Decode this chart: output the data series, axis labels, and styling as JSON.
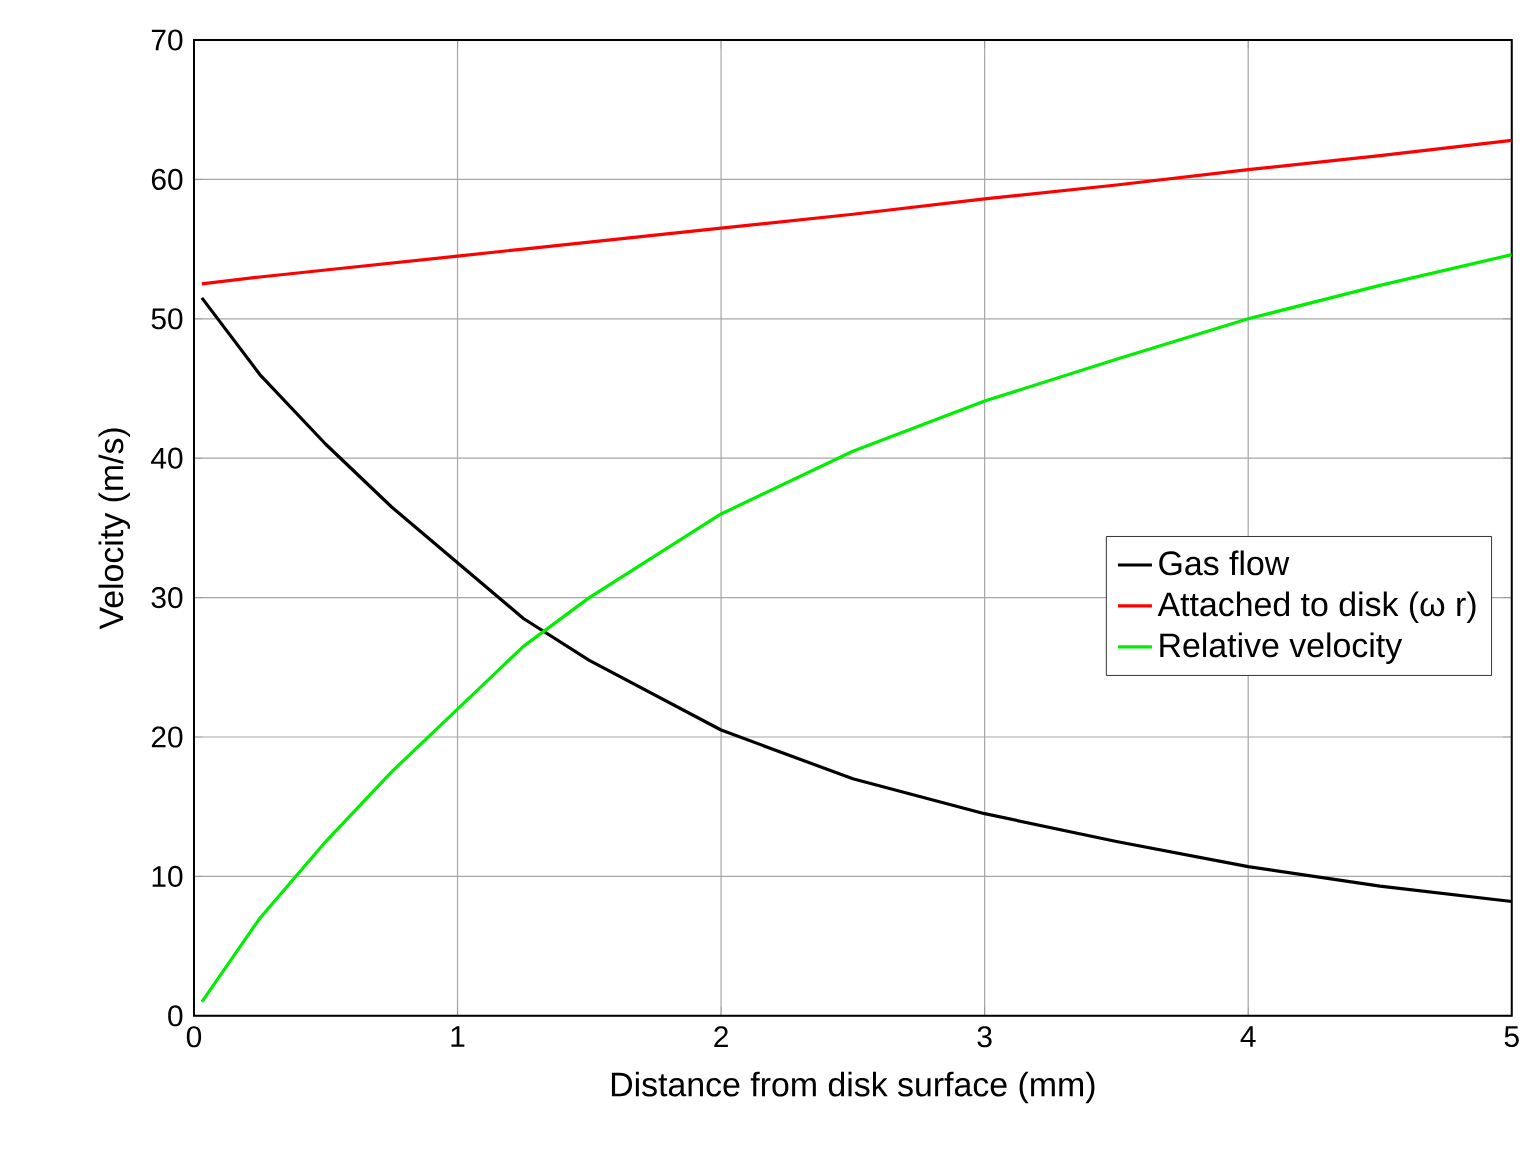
{
  "chart_data": {
    "type": "line",
    "xlabel": "Distance from disk surface (mm)",
    "ylabel": "Velocity (m/s)",
    "xlim": [
      0,
      5
    ],
    "ylim": [
      0,
      70
    ],
    "xticks": [
      0,
      1,
      2,
      3,
      4,
      5
    ],
    "yticks": [
      0,
      10,
      20,
      30,
      40,
      50,
      60,
      70
    ],
    "grid": true,
    "legend": "right",
    "x": [
      0.03,
      0.25,
      0.5,
      0.75,
      1,
      1.25,
      1.5,
      2,
      2.5,
      3,
      3.5,
      4,
      4.5,
      5
    ],
    "series": [
      {
        "name": "Gas flow",
        "color": "#000000",
        "values": [
          51.5,
          46,
          41,
          36.5,
          32.5,
          28.5,
          25.5,
          20.5,
          17,
          14.5,
          12.5,
          10.7,
          9.3,
          8.2
        ]
      },
      {
        "name": "Attached to disk (ω r)",
        "color": "#ff0000",
        "values": [
          52.5,
          53,
          53.5,
          54,
          54.5,
          55,
          55.5,
          56.5,
          57.5,
          58.6,
          59.6,
          60.7,
          61.7,
          62.8
        ]
      },
      {
        "name": "Relative velocity",
        "color": "#00ee00",
        "values": [
          1,
          7,
          12.5,
          17.5,
          22,
          26.5,
          30,
          36,
          40.5,
          44.1,
          47.1,
          50,
          52.4,
          54.6
        ]
      }
    ]
  }
}
